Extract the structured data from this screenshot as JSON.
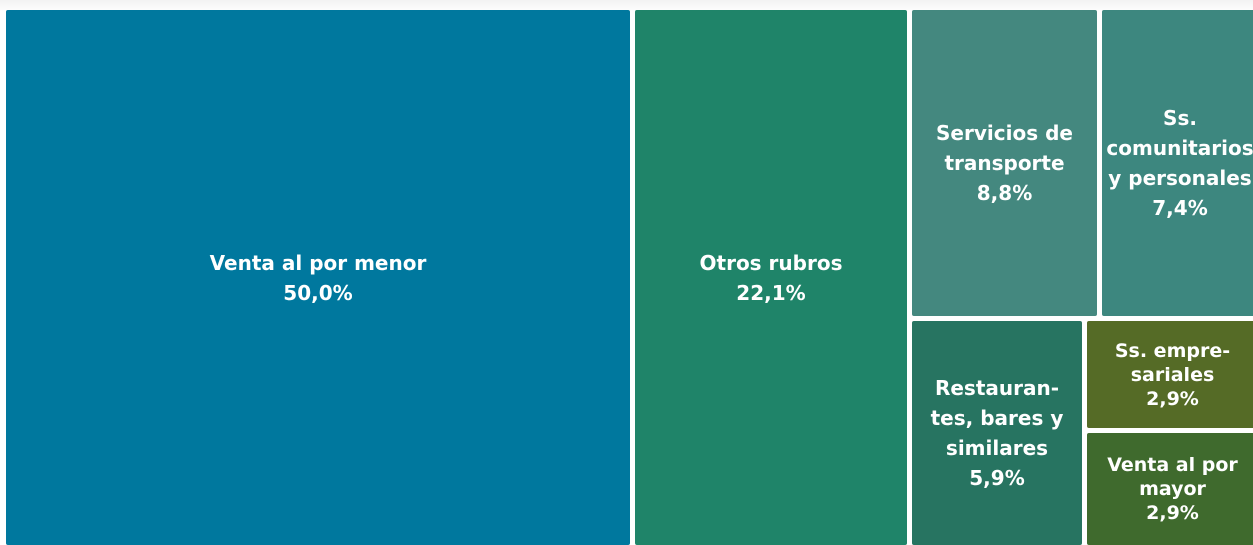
{
  "chart_data": {
    "type": "treemap",
    "categories": [
      "Venta al por menor",
      "Otros rubros",
      "Servicios de transporte",
      "Ss. comunitarios y personales",
      "Restauran­tes, bares y similares",
      "Ss. empre­sariales",
      "Venta al por mayor"
    ],
    "values": [
      50.0,
      22.1,
      8.8,
      7.4,
      5.9,
      2.9,
      2.9
    ],
    "value_labels": [
      "50,0%",
      "22,1%",
      "8,8%",
      "7,4%",
      "5,9%",
      "2,9%",
      "2,9%"
    ],
    "colors": [
      "#00789e",
      "#1f8469",
      "#44887f",
      "#3d877f",
      "#277461",
      "#556b26",
      "#3f6a2d"
    ]
  }
}
